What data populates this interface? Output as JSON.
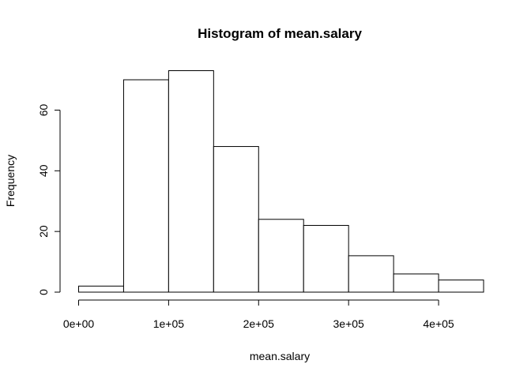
{
  "chart_data": {
    "type": "bar",
    "title": "Histogram of mean.salary",
    "xlabel": "mean.salary",
    "ylabel": "Frequency",
    "bin_edges": [
      0,
      50000,
      100000,
      150000,
      200000,
      250000,
      300000,
      350000,
      400000,
      450000
    ],
    "values": [
      2,
      70,
      73,
      48,
      24,
      22,
      12,
      6,
      4
    ],
    "xlim": [
      0,
      450000
    ],
    "ylim": [
      0,
      73
    ],
    "x_ticks": [
      0,
      100000,
      200000,
      300000,
      400000
    ],
    "x_tick_labels": [
      "0e+00",
      "1e+05",
      "2e+05",
      "3e+05",
      "4e+05"
    ],
    "y_ticks": [
      0,
      20,
      40,
      60
    ],
    "y_tick_labels": [
      "0",
      "20",
      "40",
      "60"
    ],
    "grid": false,
    "colors": {
      "bar_fill": "#ffffff",
      "bar_stroke": "#000000"
    }
  }
}
